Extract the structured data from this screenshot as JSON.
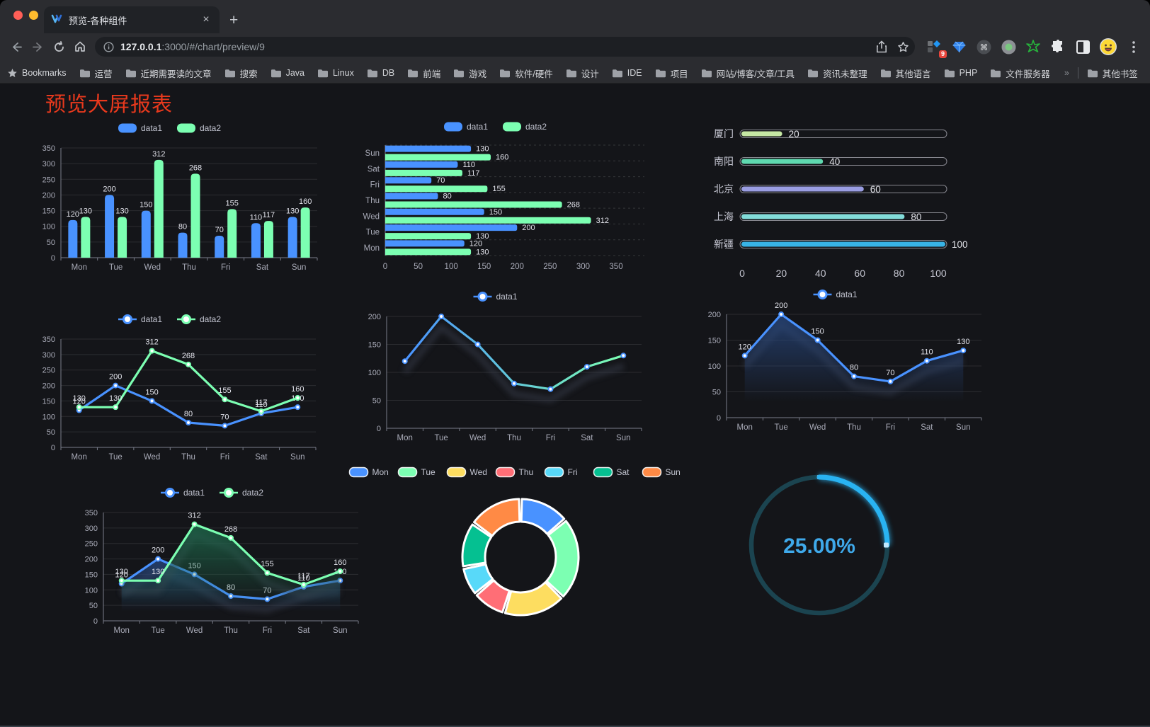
{
  "browser": {
    "traffic_lights": [
      "#ff5f57",
      "#febc2e",
      "#28c840"
    ],
    "tab": {
      "title": "预览-各种组件",
      "close_icon": "×",
      "new_tab_icon": "+"
    },
    "address": {
      "host": "127.0.0.1",
      "path": ":3000/#/chart/preview/9"
    },
    "extensions_badge": "9",
    "bookmarks": {
      "root_label": "Bookmarks",
      "items": [
        "运营",
        "近期需要读的文章",
        "搜索",
        "Java",
        "Linux",
        "DB",
        "前端",
        "游戏",
        "软件/硬件",
        "设计",
        "IDE",
        "项目",
        "网站/博客/文章/工具",
        "资讯未整理",
        "其他语言",
        "PHP",
        "文件服务器"
      ],
      "overflow_icon": "»",
      "other_label": "其他书签"
    }
  },
  "page": {
    "title": "预览大屏报表",
    "title_color": "#e8391d",
    "background": "#141519"
  },
  "palette": {
    "blue": "#4992ff",
    "green": "#7cffb2",
    "yellow": "#fddd60",
    "red": "#ff6e76",
    "lightblue": "#58d9f9",
    "teal": "#05c091",
    "orange": "#ff8a45"
  },
  "chart_data": [
    {
      "id": "bar-grouped-vertical",
      "type": "bar",
      "categories": [
        "Mon",
        "Tue",
        "Wed",
        "Thu",
        "Fri",
        "Sat",
        "Sun"
      ],
      "series": [
        {
          "name": "data1",
          "color": "#4992ff",
          "values": [
            120,
            200,
            150,
            80,
            70,
            110,
            130
          ]
        },
        {
          "name": "data2",
          "color": "#7cffb2",
          "values": [
            130,
            130,
            312,
            268,
            155,
            117,
            160
          ]
        }
      ],
      "ylim": [
        0,
        350
      ],
      "yticks": [
        0,
        50,
        100,
        150,
        200,
        250,
        300,
        350
      ],
      "legend_position": "top"
    },
    {
      "id": "bar-grouped-horizontal",
      "type": "bar",
      "orientation": "horizontal",
      "categories": [
        "Mon",
        "Tue",
        "Wed",
        "Thu",
        "Fri",
        "Sat",
        "Sun"
      ],
      "series": [
        {
          "name": "data1",
          "color": "#4992ff",
          "values": [
            120,
            200,
            150,
            80,
            70,
            110,
            130
          ]
        },
        {
          "name": "data2",
          "color": "#7cffb2",
          "values": [
            130,
            130,
            312,
            268,
            155,
            117,
            160
          ]
        }
      ],
      "xlim": [
        0,
        350
      ],
      "xticks": [
        0,
        50,
        100,
        150,
        200,
        250,
        300,
        350
      ],
      "legend_position": "top"
    },
    {
      "id": "progress-bars",
      "type": "bar",
      "subtype": "progress-pills",
      "categories": [
        "厦门",
        "南阳",
        "北京",
        "上海",
        "新疆"
      ],
      "values": [
        20,
        40,
        60,
        80,
        100
      ],
      "colors": [
        "#c6e8a4",
        "#5fd9b0",
        "#9a9de2",
        "#82dcd9",
        "#38b3e6"
      ],
      "xlim": [
        0,
        100
      ],
      "xticks": [
        0,
        20,
        40,
        60,
        80,
        100
      ]
    },
    {
      "id": "line-multi",
      "type": "line",
      "categories": [
        "Mon",
        "Tue",
        "Wed",
        "Thu",
        "Fri",
        "Sat",
        "Sun"
      ],
      "series": [
        {
          "name": "data1",
          "color": "#4992ff",
          "values": [
            120,
            200,
            150,
            80,
            70,
            110,
            130
          ]
        },
        {
          "name": "data2",
          "color": "#7cffb2",
          "values": [
            130,
            130,
            312,
            268,
            155,
            117,
            160
          ]
        }
      ],
      "ylim": [
        0,
        350
      ],
      "yticks": [
        0,
        50,
        100,
        150,
        200,
        250,
        300,
        350
      ],
      "legend_position": "top"
    },
    {
      "id": "line-gradient",
      "type": "line",
      "categories": [
        "Mon",
        "Tue",
        "Wed",
        "Thu",
        "Fri",
        "Sat",
        "Sun"
      ],
      "series": [
        {
          "name": "data1",
          "gradient": [
            "#4992ff",
            "#7cffb2"
          ],
          "color": "#4992ff",
          "values": [
            120,
            200,
            150,
            80,
            70,
            110,
            130
          ]
        }
      ],
      "ylim": [
        0,
        200
      ],
      "yticks": [
        0,
        50,
        100,
        150,
        200
      ],
      "legend_position": "top",
      "shadow": true,
      "point_labels": false
    },
    {
      "id": "area-single",
      "type": "area",
      "categories": [
        "Mon",
        "Tue",
        "Wed",
        "Thu",
        "Fri",
        "Sat",
        "Sun"
      ],
      "series": [
        {
          "name": "data1",
          "color": "#4992ff",
          "fill": "#27477e",
          "values": [
            120,
            200,
            150,
            80,
            70,
            110,
            130
          ]
        }
      ],
      "ylim": [
        0,
        200
      ],
      "yticks": [
        0,
        50,
        100,
        150,
        200
      ],
      "legend_position": "top",
      "shadow": true,
      "point_labels": true
    },
    {
      "id": "area-multi",
      "type": "area",
      "categories": [
        "Mon",
        "Tue",
        "Wed",
        "Thu",
        "Fri",
        "Sat",
        "Sun"
      ],
      "series": [
        {
          "name": "data1",
          "color": "#4992ff",
          "fill": "#27477e",
          "values": [
            120,
            200,
            150,
            80,
            70,
            110,
            130
          ]
        },
        {
          "name": "data2",
          "color": "#7cffb2",
          "fill": "#1e6b4c",
          "values": [
            130,
            130,
            312,
            268,
            155,
            117,
            160
          ]
        }
      ],
      "ylim": [
        0,
        350
      ],
      "yticks": [
        0,
        50,
        100,
        150,
        200,
        250,
        300,
        350
      ],
      "legend_position": "top",
      "shadow": true,
      "point_labels": true
    },
    {
      "id": "donut",
      "type": "pie",
      "labels": [
        "Mon",
        "Tue",
        "Wed",
        "Thu",
        "Fri",
        "Sat",
        "Sun"
      ],
      "values": [
        120,
        200,
        150,
        80,
        70,
        110,
        130
      ],
      "colors": [
        "#4992ff",
        "#7cffb2",
        "#fddd60",
        "#ff6e76",
        "#58d9f9",
        "#05c091",
        "#ff8a45"
      ],
      "legend_position": "top",
      "inner_radius": 50,
      "outer_radius": 82,
      "border_color": "#ffffff"
    },
    {
      "id": "gauge",
      "type": "gauge",
      "value": 25,
      "label": "25.00%",
      "arc_color": "#29b3f2",
      "track_color": "#1b4450",
      "text_color": "#3fa9ea"
    }
  ]
}
